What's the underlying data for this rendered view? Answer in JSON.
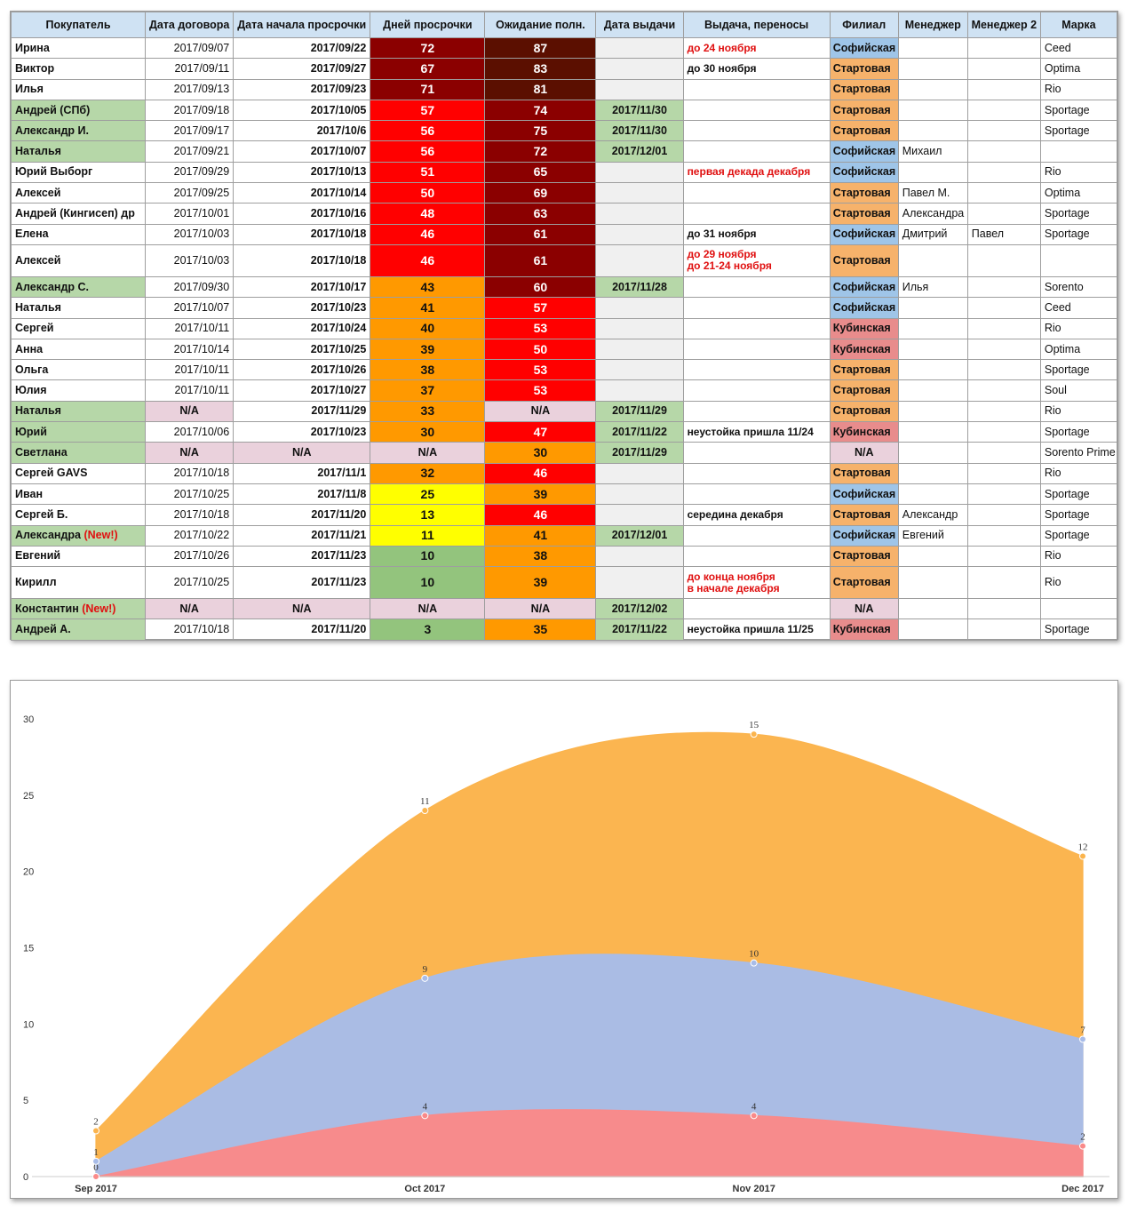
{
  "table": {
    "headers": [
      "Покупатель",
      "Дата договора",
      "Дата начала просрочки",
      "Дней просрочки",
      "Ожидание полн.",
      "Дата выдачи",
      "Выдача, переносы",
      "Филиал",
      "Менеджер",
      "Менеджер 2",
      "Марка"
    ],
    "rows": [
      {
        "name": "Ирина",
        "contract": "2017/09/07",
        "start": "2017/09/22",
        "days": "72",
        "wait": "87",
        "issue": "",
        "note": "до 24 ноября",
        "note_red": true,
        "branch": "Софийская",
        "m1": "",
        "m2": "",
        "brand": "Ceed"
      },
      {
        "name": "Виктор",
        "contract": "2017/09/11",
        "start": "2017/09/27",
        "days": "67",
        "wait": "83",
        "issue": "",
        "note": "до 30 ноября",
        "branch": "Стартовая",
        "m1": "",
        "m2": "",
        "brand": "Optima"
      },
      {
        "name": "Илья",
        "contract": "2017/09/13",
        "start": "2017/09/23",
        "days": "71",
        "wait": "81",
        "issue": "",
        "note": "",
        "branch": "Стартовая",
        "m1": "",
        "m2": "",
        "brand": "Rio"
      },
      {
        "name": "Андрей (СПб)",
        "name_green": true,
        "contract": "2017/09/18",
        "start": "2017/10/05",
        "days": "57",
        "wait": "74",
        "issue": "2017/11/30",
        "note": "",
        "branch": "Стартовая",
        "m1": "",
        "m2": "",
        "brand": "Sportage"
      },
      {
        "name": "Александр И.",
        "name_green": true,
        "contract": "2017/09/17",
        "start": "2017/10/6",
        "days": "56",
        "wait": "75",
        "issue": "2017/11/30",
        "note": "",
        "branch": "Стартовая",
        "m1": "",
        "m2": "",
        "brand": "Sportage"
      },
      {
        "name": "Наталья",
        "name_green": true,
        "contract": "2017/09/21",
        "start": "2017/10/07",
        "days": "56",
        "wait": "72",
        "issue": "2017/12/01",
        "note": "",
        "branch": "Софийская",
        "m1": "Михаил",
        "m2": "",
        "brand": ""
      },
      {
        "name": "Юрий Выборг",
        "contract": "2017/09/29",
        "start": "2017/10/13",
        "days": "51",
        "wait": "65",
        "issue": "",
        "note": "первая декада декабря",
        "note_red": true,
        "branch": "Софийская",
        "m1": "",
        "m2": "",
        "brand": "Rio"
      },
      {
        "name": "Алексей",
        "contract": "2017/09/25",
        "start": "2017/10/14",
        "days": "50",
        "wait": "69",
        "issue": "",
        "note": "",
        "branch": "Стартовая",
        "m1": "Павел М.",
        "m2": "",
        "brand": "Optima"
      },
      {
        "name": "Андрей (Кингисеп) др",
        "contract": "2017/10/01",
        "start": "2017/10/16",
        "days": "48",
        "wait": "63",
        "issue": "",
        "note": "",
        "branch": "Стартовая",
        "m1": "Александра",
        "m2": "",
        "brand": "Sportage"
      },
      {
        "name": "Елена",
        "contract": "2017/10/03",
        "start": "2017/10/18",
        "days": "46",
        "wait": "61",
        "issue": "",
        "note": "до 31 ноября",
        "branch": "Софийская",
        "m1": "Дмитрий",
        "m2": "Павел",
        "brand": "Sportage"
      },
      {
        "name": "Алексей",
        "contract": "2017/10/03",
        "start": "2017/10/18",
        "days": "46",
        "wait": "61",
        "issue": "",
        "note": "до 29 ноября",
        "note2": "до 21-24 ноября",
        "note_red": true,
        "tall": true,
        "branch": "Стартовая",
        "m1": "",
        "m2": "",
        "brand": ""
      },
      {
        "name": "Александр С.",
        "name_green": true,
        "contract": "2017/09/30",
        "start": "2017/10/17",
        "days": "43",
        "wait": "60",
        "issue": "2017/11/28",
        "note": "",
        "branch": "Софийская",
        "m1": "Илья",
        "m2": "",
        "brand": "Sorento"
      },
      {
        "name": "Наталья",
        "contract": "2017/10/07",
        "start": "2017/10/23",
        "days": "41",
        "wait": "57",
        "issue": "",
        "note": "",
        "branch": "Софийская",
        "m1": "",
        "m2": "",
        "brand": "Ceed"
      },
      {
        "name": "Сергей",
        "contract": "2017/10/11",
        "start": "2017/10/24",
        "days": "40",
        "wait": "53",
        "issue": "",
        "note": "",
        "branch": "Кубинская",
        "m1": "",
        "m2": "",
        "brand": "Rio"
      },
      {
        "name": "Анна",
        "contract": "2017/10/14",
        "start": "2017/10/25",
        "days": "39",
        "wait": "50",
        "issue": "",
        "note": "",
        "branch": "Кубинская",
        "m1": "",
        "m2": "",
        "brand": "Optima"
      },
      {
        "name": "Ольга",
        "contract": "2017/10/11",
        "start": "2017/10/26",
        "days": "38",
        "wait": "53",
        "issue": "",
        "note": "",
        "branch": "Стартовая",
        "m1": "",
        "m2": "",
        "brand": "Sportage"
      },
      {
        "name": "Юлия",
        "contract": "2017/10/11",
        "start": "2017/10/27",
        "days": "37",
        "wait": "53",
        "issue": "",
        "note": "",
        "branch": "Стартовая",
        "m1": "",
        "m2": "",
        "brand": "Soul"
      },
      {
        "name": "Наталья",
        "name_green": true,
        "contract": "N/A",
        "start": "2017/11/29",
        "days": "33",
        "wait": "N/A",
        "issue": "2017/11/29",
        "note": "",
        "branch": "Стартовая",
        "m1": "",
        "m2": "",
        "brand": "Rio"
      },
      {
        "name": "Юрий",
        "name_green": true,
        "contract": "2017/10/06",
        "start": "2017/10/23",
        "days": "30",
        "wait": "47",
        "issue": "2017/11/22",
        "note": "неустойка пришла 11/24",
        "branch": "Кубинская",
        "m1": "",
        "m2": "",
        "brand": "Sportage"
      },
      {
        "name": "Светлана",
        "name_green": true,
        "contract": "N/A",
        "start": "N/A",
        "days": "N/A",
        "wait": "30",
        "issue": "2017/11/29",
        "note": "",
        "branch": "N/A",
        "m1": "",
        "m2": "",
        "brand": "Sorento Prime"
      },
      {
        "name": "Сергей GAVS",
        "contract": "2017/10/18",
        "start": "2017/11/1",
        "days": "32",
        "wait": "46",
        "issue": "",
        "note": "",
        "branch": "Стартовая",
        "m1": "",
        "m2": "",
        "brand": "Rio"
      },
      {
        "name": "Иван",
        "contract": "2017/10/25",
        "start": "2017/11/8",
        "days": "25",
        "wait": "39",
        "issue": "",
        "note": "",
        "branch": "Софийская",
        "m1": "",
        "m2": "",
        "brand": "Sportage"
      },
      {
        "name": "Сергей Б.",
        "contract": "2017/10/18",
        "start": "2017/11/20",
        "days": "13",
        "wait": "46",
        "issue": "",
        "note": "середина декабря",
        "branch": "Стартовая",
        "m1": "Александр",
        "m2": "",
        "brand": "Sportage"
      },
      {
        "name": "Александра",
        "name_new": "(New!)",
        "name_green": true,
        "contract": "2017/10/22",
        "start": "2017/11/21",
        "days": "11",
        "wait": "41",
        "issue": "2017/12/01",
        "note": "",
        "branch": "Софийская",
        "m1": "Евгений",
        "m2": "",
        "brand": "Sportage"
      },
      {
        "name": "Евгений",
        "contract": "2017/10/26",
        "start": "2017/11/23",
        "days": "10",
        "wait": "38",
        "issue": "",
        "note": "",
        "branch": "Стартовая",
        "m1": "",
        "m2": "",
        "brand": "Rio"
      },
      {
        "name": "Кирилл",
        "contract": "2017/10/25",
        "start": "2017/11/23",
        "days": "10",
        "wait": "39",
        "issue": "",
        "note": "до конца ноября",
        "note2": "в начале декабря",
        "note_red": true,
        "tall": true,
        "branch": "Стартовая",
        "m1": "",
        "m2": "",
        "brand": "Rio"
      },
      {
        "name": "Константин",
        "name_new": "(New!)",
        "name_green": true,
        "contract": "N/A",
        "start": "N/A",
        "days": "N/A",
        "wait": "N/A",
        "issue": "2017/12/02",
        "note": "",
        "branch": "N/A",
        "m1": "",
        "m2": "",
        "brand": ""
      },
      {
        "name": "Андрей А.",
        "name_green": true,
        "contract": "2017/10/18",
        "start": "2017/11/20",
        "days": "3",
        "wait": "35",
        "issue": "2017/11/22",
        "note": "неустойка пришла 11/25",
        "branch": "Кубинская",
        "m1": "",
        "m2": "",
        "brand": "Sportage"
      }
    ]
  },
  "colors": {
    "header_bg": "#cfe2f3",
    "name_green": "#b6d7a8",
    "na_pink": "#ead1dc",
    "issue_gray": "#f0f0f0",
    "branch_sofiyskaya": "#9fc5e8",
    "branch_startovaya": "#f6b26b",
    "branch_kubinskaya": "#e88c8c",
    "heat_darkest": "#5b0f00",
    "heat_dark": "#8b0000",
    "heat_red": "#ff0000",
    "heat_orange": "#ff9900",
    "heat_yellow": "#ffff00",
    "heat_green": "#93c47d",
    "note_red": "#e01010"
  },
  "chart_data": {
    "type": "area",
    "stacked": true,
    "x": [
      "Sep 2017",
      "Oct 2017",
      "Nov 2017",
      "Dec 2017"
    ],
    "ylim": [
      0,
      30
    ],
    "yticks": [
      0,
      5,
      10,
      15,
      20,
      25,
      30
    ],
    "grid": false,
    "series": [
      {
        "values": [
          0,
          4,
          4,
          2
        ],
        "color": "#f98a8a"
      },
      {
        "values": [
          1,
          9,
          10,
          7
        ],
        "color": "#a8bce8"
      },
      {
        "values": [
          2,
          11,
          15,
          12
        ],
        "color": "#fbb44d"
      }
    ]
  }
}
